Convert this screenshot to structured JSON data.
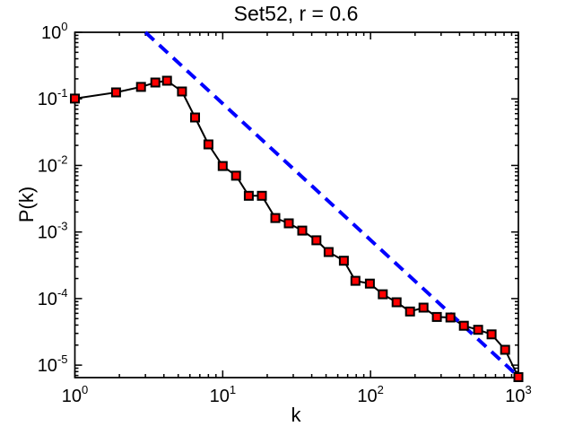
{
  "figure": {
    "background": "#ffffff"
  },
  "chart_data": {
    "type": "line",
    "title": "Set52, r = 0.6",
    "xlabel": "k",
    "ylabel": "P(k)",
    "xscale": "log",
    "yscale": "log",
    "xlim": [
      1,
      1000
    ],
    "ylim": [
      6.5e-06,
      1
    ],
    "x_tick_exponents": [
      0,
      1,
      2,
      3
    ],
    "y_tick_exponents": [
      0,
      -1,
      -2,
      -3,
      -4,
      -5
    ],
    "grid": false,
    "tick_label_base": "10",
    "colors": {
      "marker_fill": "#ff0000",
      "marker_edge": "#000000",
      "data_line": "#000000",
      "reference_line": "#0000ff",
      "axes": "#000000"
    },
    "series": [
      {
        "name": "degree-distribution",
        "style": "solid-line-with-square-markers",
        "x": [
          1,
          1.9,
          2.8,
          3.5,
          4.2,
          5.3,
          6.5,
          8,
          10,
          12.3,
          15,
          18.4,
          22.7,
          28,
          34.5,
          43,
          52,
          66,
          79,
          99,
          121,
          150,
          185,
          228,
          281,
          347,
          428,
          534,
          659,
          813,
          1000
        ],
        "y": [
          0.101,
          0.125,
          0.151,
          0.176,
          0.187,
          0.129,
          0.0525,
          0.0207,
          0.0098,
          0.007,
          0.0035,
          0.0035,
          0.00162,
          0.00135,
          0.00105,
          0.00075,
          0.0005,
          0.00037,
          0.000185,
          0.000168,
          0.000116,
          8.8e-05,
          6.4e-05,
          7.3e-05,
          5.3e-05,
          5.2e-05,
          3.9e-05,
          3.4e-05,
          2.9e-05,
          1.7e-05,
          6.6e-06
        ]
      },
      {
        "name": "power-law-reference",
        "style": "dashed-line",
        "x": [
          3.0,
          950
        ],
        "y": [
          1.0,
          7.5e-06
        ]
      }
    ]
  }
}
